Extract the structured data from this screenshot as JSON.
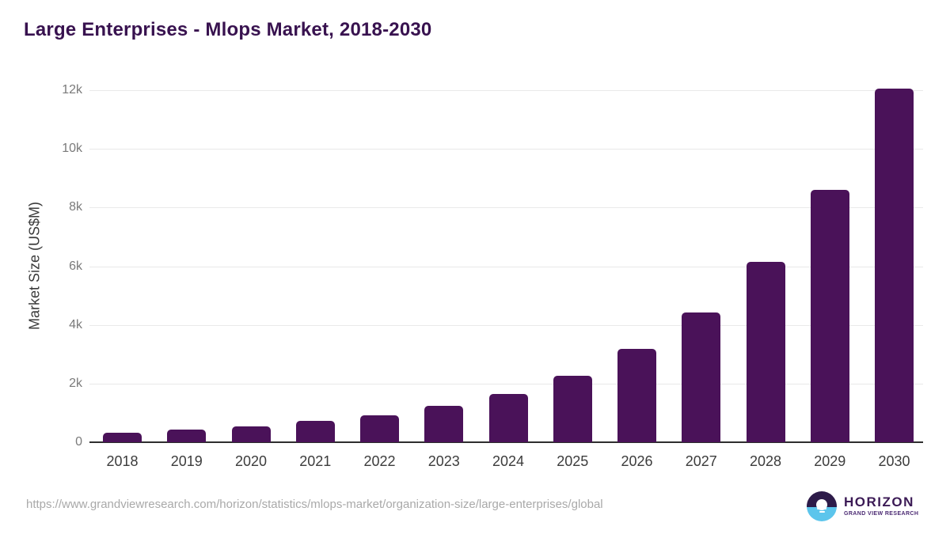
{
  "title": "Large Enterprises - Mlops Market, 2018-2030",
  "chart_data": {
    "type": "bar",
    "title": "Large Enterprises - Mlops Market, 2018-2030",
    "categories": [
      "2018",
      "2019",
      "2020",
      "2021",
      "2022",
      "2023",
      "2024",
      "2025",
      "2026",
      "2027",
      "2028",
      "2029",
      "2030"
    ],
    "values": [
      320,
      420,
      540,
      720,
      930,
      1250,
      1650,
      2260,
      3180,
      4410,
      6140,
      8610,
      12060
    ],
    "series_name": "Market Size",
    "xlabel": "",
    "ylabel": "Market Size (US$M)",
    "ylim": [
      0,
      12000
    ],
    "yticks": [
      {
        "value": 0,
        "label": "0"
      },
      {
        "value": 2000,
        "label": "2k"
      },
      {
        "value": 4000,
        "label": "4k"
      },
      {
        "value": 6000,
        "label": "6k"
      },
      {
        "value": 8000,
        "label": "8k"
      },
      {
        "value": 10000,
        "label": "10k"
      },
      {
        "value": 12000,
        "label": "12k"
      }
    ],
    "grid": true,
    "legend": false
  },
  "footer": {
    "source_url": "https://www.grandviewresearch.com/horizon/statistics/mlops-market/organization-size/large-enterprises/global",
    "logo": {
      "name": "HORIZON",
      "subtitle": "GRAND VIEW RESEARCH"
    }
  },
  "colors": {
    "bar": "#4a1259",
    "title": "#38124f",
    "gridline": "#e9e9e9",
    "axis_line": "#2e2e2e",
    "y_tick_text": "#7a7a7a",
    "x_tick_text": "#3c3c3c",
    "source_text": "#a9a9a9",
    "logo_purple": "#2d1b49",
    "logo_blue": "#5cc5ec"
  }
}
